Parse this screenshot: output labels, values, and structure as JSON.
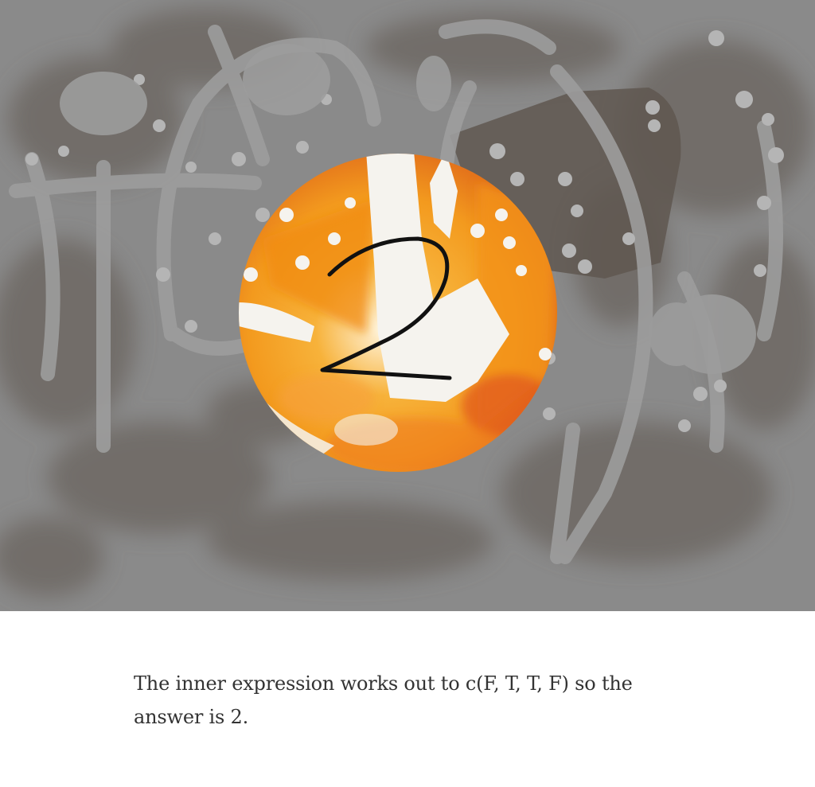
{
  "illustration": {
    "numeral": "2",
    "colors": {
      "background": "#8a8a8a",
      "orange": "#f39a1e",
      "cream": "#f5f3ee",
      "dark_wash": "#5f5750"
    }
  },
  "caption": {
    "text": "The inner expression works out to c(F, T, T, F) so the answer is 2."
  }
}
